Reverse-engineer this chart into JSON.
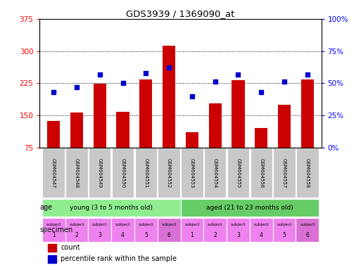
{
  "title": "GDS3939 / 1369090_at",
  "samples": [
    "GSM604547",
    "GSM604548",
    "GSM604549",
    "GSM604550",
    "GSM604551",
    "GSM604552",
    "GSM604553",
    "GSM604554",
    "GSM604555",
    "GSM604556",
    "GSM604557",
    "GSM604558"
  ],
  "counts": [
    137,
    157,
    224,
    158,
    234,
    313,
    110,
    178,
    232,
    120,
    175,
    233
  ],
  "percentile_ranks": [
    43,
    47,
    57,
    50,
    58,
    62,
    40,
    51,
    57,
    43,
    51,
    57
  ],
  "ylim_left": [
    75,
    375
  ],
  "ylim_right": [
    0,
    100
  ],
  "yticks_left": [
    75,
    150,
    225,
    300,
    375
  ],
  "yticks_right": [
    0,
    25,
    50,
    75,
    100
  ],
  "bar_color": "#cc0000",
  "square_color": "#0000cc",
  "grid_color": "#000000",
  "age_groups": [
    {
      "label": "young (3 to 5 months old)",
      "start": 0,
      "end": 6,
      "color": "#90ee90"
    },
    {
      "label": "aged (21 to 23 months old)",
      "start": 6,
      "end": 12,
      "color": "#66cc66"
    }
  ],
  "specimen_numbers": [
    "1",
    "2",
    "3",
    "4",
    "5",
    "6",
    "1",
    "2",
    "3",
    "4",
    "5",
    "6"
  ],
  "specimen_colors": [
    "#ee82ee",
    "#ee82ee",
    "#ee82ee",
    "#ee82ee",
    "#ee82ee",
    "#da70d6",
    "#ee82ee",
    "#ee82ee",
    "#ee82ee",
    "#ee82ee",
    "#ee82ee",
    "#da70d6"
  ],
  "tick_label_bg": "#c8c8c8",
  "legend_items": [
    {
      "color": "#cc0000",
      "label": "count"
    },
    {
      "color": "#0000cc",
      "label": "percentile rank within the sample"
    }
  ]
}
